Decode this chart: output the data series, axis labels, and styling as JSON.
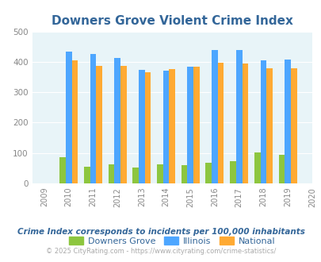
{
  "title": "Downers Grove Violent Crime Index",
  "all_years": [
    2009,
    2010,
    2011,
    2012,
    2013,
    2014,
    2015,
    2016,
    2017,
    2018,
    2019,
    2020
  ],
  "bar_years": [
    2010,
    2011,
    2012,
    2013,
    2014,
    2015,
    2016,
    2017,
    2018,
    2019
  ],
  "downers_grove": [
    85,
    55,
    63,
    53,
    63,
    60,
    68,
    72,
    102,
    95
  ],
  "illinois": [
    433,
    427,
    414,
    373,
    370,
    383,
    438,
    438,
    405,
    408
  ],
  "national": [
    405,
    387,
    387,
    366,
    375,
    383,
    397,
    394,
    380,
    379
  ],
  "colors": {
    "downers_grove": "#8dc63f",
    "illinois": "#4da6ff",
    "national": "#ffaa33"
  },
  "ylim": [
    0,
    500
  ],
  "yticks": [
    0,
    100,
    200,
    300,
    400,
    500
  ],
  "legend_labels": [
    "Downers Grove",
    "Illinois",
    "National"
  ],
  "footnote1": "Crime Index corresponds to incidents per 100,000 inhabitants",
  "footnote2": "© 2025 CityRating.com - https://www.cityrating.com/crime-statistics/",
  "bg_color": "#e8f4f8",
  "title_color": "#336699",
  "title_fontsize": 11,
  "legend_color": "#336699",
  "footnote1_color": "#336699",
  "footnote2_color": "#aaaaaa",
  "tick_color": "#888888",
  "grid_color": "#d0e8f0",
  "bar_width": 0.25
}
